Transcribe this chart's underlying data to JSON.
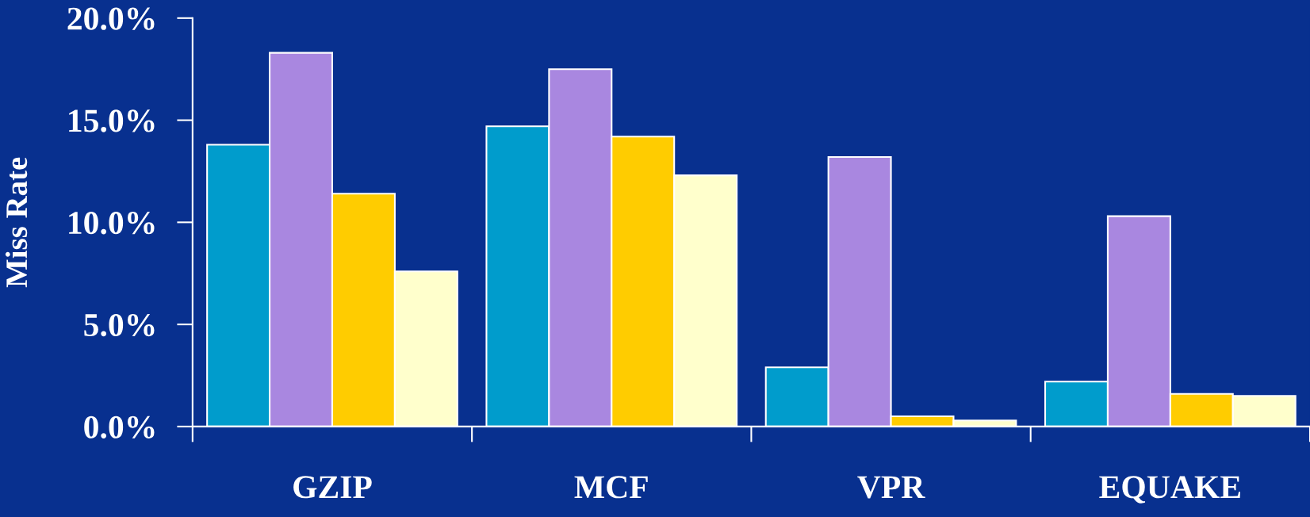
{
  "chart_data": {
    "type": "bar",
    "ylabel": "Miss Rate",
    "categories": [
      "GZIP",
      "MCF",
      "VPR",
      "EQUAKE"
    ],
    "series": [
      {
        "color": "#009ccc",
        "values": [
          13.8,
          14.7,
          2.9,
          2.2
        ]
      },
      {
        "color": "#a987e0",
        "values": [
          18.3,
          17.5,
          13.2,
          10.3
        ]
      },
      {
        "color": "#ffcc00",
        "values": [
          11.4,
          14.2,
          0.5,
          1.6
        ]
      },
      {
        "color": "#ffffcc",
        "values": [
          7.6,
          12.3,
          0.3,
          1.5
        ]
      }
    ],
    "ylim": [
      0,
      20
    ],
    "yticks": [
      {
        "value": 0,
        "label": "0.0%"
      },
      {
        "value": 5,
        "label": "5.0%"
      },
      {
        "value": 10,
        "label": "10.0%"
      },
      {
        "value": 15,
        "label": "15.0%"
      },
      {
        "value": 20,
        "label": "20.0%"
      }
    ],
    "grid": false
  }
}
